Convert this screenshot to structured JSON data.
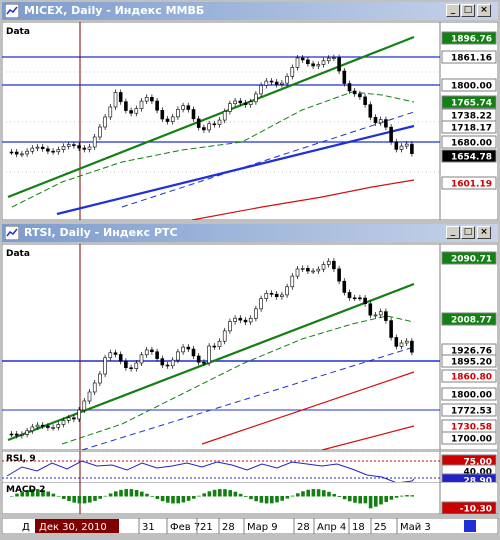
{
  "micex": {
    "title": "MICEX, Daily - Индекс ММВБ",
    "data_label": "Data",
    "price_tags": [
      {
        "label": "1896.76",
        "bg": "#138013",
        "fg": "#ffffff"
      },
      {
        "label": "1861.16",
        "bg": "#ffffff",
        "fg": "#000000"
      },
      {
        "label": "1800.00",
        "bg": "#ffffff",
        "fg": "#000000"
      },
      {
        "label": "1765.74",
        "bg": "#138013",
        "fg": "#ffffff"
      },
      {
        "label": "1738.22",
        "bg": "#ffffff",
        "fg": "#000000"
      },
      {
        "label": "1718.17",
        "bg": "#ffffff",
        "fg": "#000000"
      },
      {
        "label": "1680.00",
        "bg": "#ffffff",
        "fg": "#000000"
      },
      {
        "label": "1654.78",
        "bg": "#000000",
        "fg": "#ffffff"
      },
      {
        "label": "1601.19",
        "bg": "#ffffff",
        "fg": "#cc0000"
      }
    ]
  },
  "rtsi": {
    "title": "RTSI, Daily - Индекс РТС",
    "data_label": "Data",
    "price_tags": [
      {
        "label": "2090.71",
        "bg": "#138013",
        "fg": "#ffffff"
      },
      {
        "label": "2008.77",
        "bg": "#138013",
        "fg": "#ffffff"
      },
      {
        "label": "1926.76",
        "bg": "#ffffff",
        "fg": "#000000"
      },
      {
        "label": "1895.20",
        "bg": "#ffffff",
        "fg": "#000000"
      },
      {
        "label": "1860.80",
        "bg": "#ffffff",
        "fg": "#cc0000"
      },
      {
        "label": "1800.00",
        "bg": "#ffffff",
        "fg": "#000000"
      },
      {
        "label": "1772.53",
        "bg": "#ffffff",
        "fg": "#000000"
      },
      {
        "label": "1730.58",
        "bg": "#ffffff",
        "fg": "#cc0000"
      },
      {
        "label": "1700.00",
        "bg": "#ffffff",
        "fg": "#000000"
      }
    ],
    "rsi_label": "RSI, 9",
    "rsi_tags": [
      {
        "label": "75.00",
        "bg": "#cc0000",
        "fg": "#ffffff"
      },
      {
        "label": "40.00",
        "bg": "#ffffff",
        "fg": "#000000"
      },
      {
        "label": "28.90",
        "bg": "#2222cc",
        "fg": "#ffffff"
      }
    ],
    "macd_label": "MACD 2",
    "macd_tag": {
      "label": "-10.30",
      "bg": "#cc0000",
      "fg": "#ffffff"
    }
  },
  "time_axis": {
    "cursor_date": "Дек 30, 2010",
    "first_tick": "Д",
    "ticks": [
      "31",
      "Фев 7",
      "21",
      "28",
      "Мар 9",
      "28",
      "Апр 4",
      "18",
      "25",
      "Май 3"
    ]
  },
  "window_buttons": {
    "minimize": "_",
    "maximize": "□",
    "close": "×"
  },
  "colors": {
    "trend_green": "#138013",
    "channel_blue": "#1f31d6",
    "ma_red": "#d11111",
    "crosshair": "#800000"
  }
}
